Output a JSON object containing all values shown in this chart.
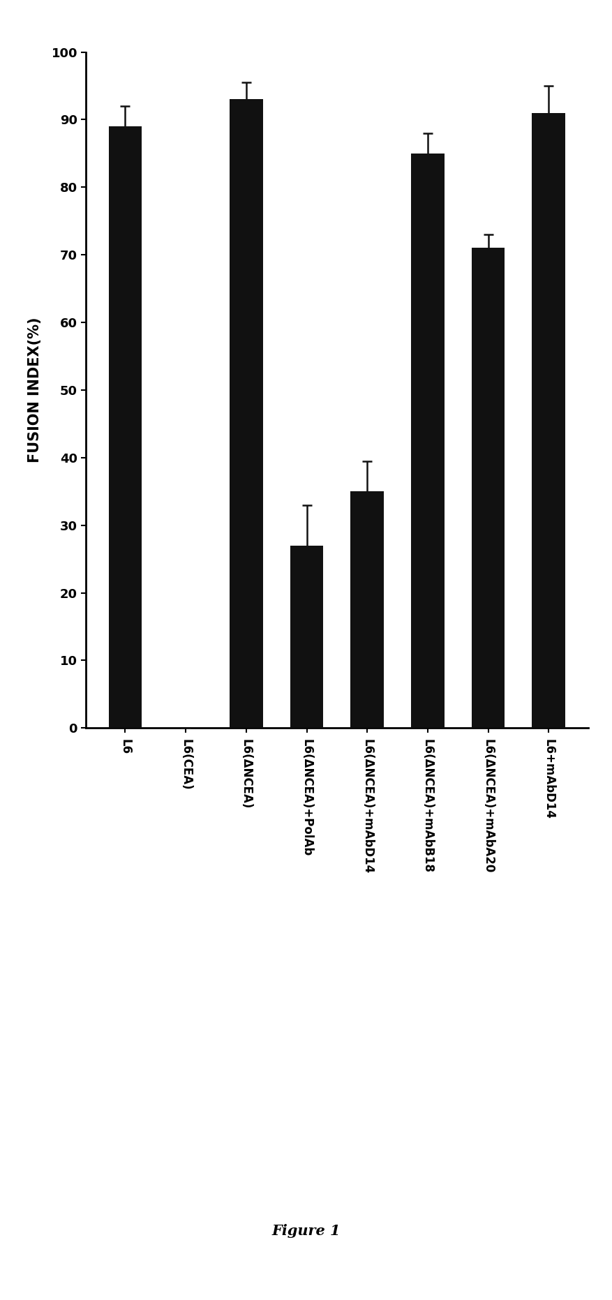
{
  "categories": [
    "L6",
    "L6(CEA)",
    "L6(ΔNCEA)",
    "L6(ΔNCEA)+PolAb",
    "L6(ΔNCEA)+mAbD14",
    "L6(ΔNCEA)+mAbB18",
    "L6(ΔNCEA)+mAbA20",
    "L6+mAbD14"
  ],
  "values": [
    89.0,
    0.0,
    93.0,
    27.0,
    35.0,
    85.0,
    71.0,
    91.0
  ],
  "errors": [
    3.0,
    0.0,
    2.5,
    6.0,
    4.5,
    3.0,
    2.0,
    4.0
  ],
  "bar_color": "#111111",
  "bar_width": 0.55,
  "ylabel": "FUSION INDEX(%)",
  "ylim": [
    0,
    100
  ],
  "yticks": [
    0,
    10,
    20,
    30,
    40,
    50,
    60,
    70,
    80,
    90,
    100
  ],
  "figure_label": "Figure 1",
  "background_color": "#ffffff",
  "ylabel_fontsize": 15,
  "tick_fontsize": 13,
  "xlabel_fontsize": 12,
  "figure_label_fontsize": 15,
  "error_capsize": 5,
  "error_linewidth": 1.8,
  "error_color": "#111111"
}
